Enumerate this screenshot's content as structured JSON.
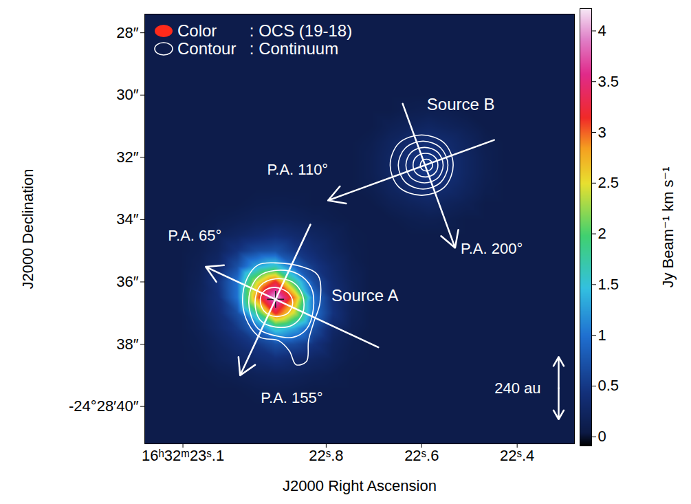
{
  "chart_data": {
    "type": "heatmap",
    "x_label": "J2000 Right Ascension",
    "y_label": "J2000 Declination",
    "xlim": [
      22.28,
      23.18
    ],
    "ylim": [
      27.4,
      41.2
    ],
    "xticks": [
      {
        "value": 23.1,
        "label": "16ʰ32ᵐ23ˢ.1"
      },
      {
        "value": 22.8,
        "label": "22ˢ.8"
      },
      {
        "value": 22.6,
        "label": "22ˢ.6"
      },
      {
        "value": 22.4,
        "label": "22ˢ.4"
      }
    ],
    "yticks": [
      {
        "value": 28,
        "label": "28″"
      },
      {
        "value": 30,
        "label": "30″"
      },
      {
        "value": 32,
        "label": "32″"
      },
      {
        "value": 34,
        "label": "34″"
      },
      {
        "value": 36,
        "label": "36″"
      },
      {
        "value": 38,
        "label": "38″"
      },
      {
        "value": 40,
        "label": "-24°28′40″"
      }
    ],
    "legend": "top-left",
    "legend_items": [
      {
        "key": "Color",
        "text": ": OCS (19-18)",
        "type": "raster",
        "color": "#ff2a1a"
      },
      {
        "key": "Contour",
        "text": ": Continuum",
        "type": "contour",
        "color": "#ffffff"
      }
    ],
    "colorbar": {
      "label": "Jy Beam⁻¹ km s⁻¹",
      "range": [
        -0.09,
        4.22
      ],
      "ticks": [
        0,
        0.5,
        1,
        1.5,
        2,
        2.5,
        3,
        3.5,
        4
      ]
    },
    "heatmap": {
      "x": [
        23.186,
        23.146,
        23.106,
        23.066,
        23.026,
        22.986,
        22.946,
        22.906,
        22.866,
        22.826,
        22.786,
        22.746,
        22.706,
        22.666,
        22.626,
        22.586,
        22.546,
        22.506,
        22.466,
        22.426,
        22.386,
        22.346,
        22.306,
        22.266
      ],
      "y": [
        27,
        27.5,
        28,
        28.5,
        29,
        29.5,
        30,
        30.5,
        31,
        31.5,
        32,
        32.5,
        33,
        33.5,
        34,
        34.5,
        35,
        35.5,
        36,
        36.5,
        37,
        37.5,
        38,
        38.5,
        39,
        39.5,
        40,
        40.5,
        41,
        41.5
      ],
      "values": [
        [
          0.08,
          0.08,
          0.08,
          0.08,
          0.08,
          0.08,
          0.08,
          0.08,
          0.08,
          0.08,
          0.08,
          0.08,
          0.08,
          0.08,
          0.08,
          0.08,
          0.08,
          0.08,
          0.08,
          0.08,
          0.08,
          0.08,
          0.08,
          0.08
        ],
        [
          0.08,
          0.08,
          0.08,
          0.08,
          0.08,
          0.08,
          0.08,
          0.08,
          0.08,
          0.08,
          0.08,
          0.08,
          0.08,
          0.08,
          0.08,
          0.08,
          0.08,
          0.08,
          0.08,
          0.08,
          0.08,
          0.08,
          0.08,
          0.08
        ],
        [
          0.08,
          0.08,
          0.08,
          0.08,
          0.08,
          0.08,
          0.08,
          0.08,
          0.08,
          0.08,
          0.08,
          0.08,
          0.08,
          0.08,
          0.08,
          0.08,
          0.08,
          0.08,
          0.08,
          0.08,
          0.08,
          0.08,
          0.08,
          0.08
        ],
        [
          0.08,
          0.08,
          0.08,
          0.08,
          0.08,
          0.08,
          0.08,
          0.08,
          0.08,
          0.08,
          0.08,
          0.08,
          0.08,
          0.08,
          0.08,
          0.08,
          0.08,
          0.08,
          0.08,
          0.08,
          0.08,
          0.08,
          0.08,
          0.08
        ],
        [
          0.08,
          0.08,
          0.08,
          0.08,
          0.08,
          0.08,
          0.08,
          0.08,
          0.08,
          0.08,
          0.08,
          0.08,
          0.08,
          0.08,
          0.08,
          0.08,
          0.08,
          0.08,
          0.08,
          0.08,
          0.08,
          0.08,
          0.08,
          0.08
        ],
        [
          0.08,
          0.08,
          0.08,
          0.08,
          0.08,
          0.08,
          0.08,
          0.08,
          0.08,
          0.08,
          0.08,
          0.08,
          0.08,
          0.08,
          0.08,
          0.08,
          0.08,
          0.08,
          0.08,
          0.08,
          0.08,
          0.08,
          0.08,
          0.08
        ],
        [
          0.08,
          0.08,
          0.08,
          0.08,
          0.08,
          0.08,
          0.08,
          0.08,
          0.08,
          0.08,
          0.08,
          0.08,
          0.08,
          0.08,
          0.08,
          0.08,
          0.08,
          0.08,
          0.08,
          0.08,
          0.08,
          0.08,
          0.08,
          0.08
        ],
        [
          0.08,
          0.08,
          0.08,
          0.08,
          0.08,
          0.08,
          0.08,
          0.08,
          0.08,
          0.08,
          0.08,
          0.08,
          0.08,
          0.08,
          0.12,
          0.14,
          0.12,
          0.08,
          0.08,
          0.08,
          0.08,
          0.08,
          0.08,
          0.08
        ],
        [
          0.08,
          0.08,
          0.08,
          0.08,
          0.08,
          0.08,
          0.08,
          0.08,
          0.08,
          0.08,
          0.08,
          0.08,
          0.08,
          0.15,
          0.2,
          0.25,
          0.2,
          0.15,
          0.08,
          0.08,
          0.08,
          0.08,
          0.08,
          0.08
        ],
        [
          0.08,
          0.08,
          0.08,
          0.08,
          0.08,
          0.08,
          0.08,
          0.08,
          0.08,
          0.08,
          0.08,
          0.08,
          0.12,
          0.22,
          0.32,
          0.38,
          0.32,
          0.22,
          0.12,
          0.08,
          0.08,
          0.08,
          0.08,
          0.08
        ],
        [
          0.08,
          0.08,
          0.08,
          0.08,
          0.08,
          0.08,
          0.08,
          0.08,
          0.08,
          0.08,
          0.08,
          0.08,
          0.14,
          0.25,
          0.4,
          0.5,
          0.4,
          0.25,
          0.14,
          0.08,
          0.08,
          0.08,
          0.08,
          0.08
        ],
        [
          0.08,
          0.08,
          0.08,
          0.08,
          0.08,
          0.08,
          0.08,
          0.08,
          0.08,
          0.08,
          0.08,
          0.08,
          0.14,
          0.25,
          0.4,
          0.5,
          0.4,
          0.25,
          0.14,
          0.08,
          0.08,
          0.08,
          0.08,
          0.08
        ],
        [
          0.08,
          0.08,
          0.08,
          0.08,
          0.08,
          0.08,
          0.08,
          0.08,
          0.08,
          0.08,
          0.08,
          0.08,
          0.12,
          0.22,
          0.32,
          0.38,
          0.32,
          0.22,
          0.12,
          0.08,
          0.08,
          0.08,
          0.08,
          0.08
        ],
        [
          0.08,
          0.08,
          0.08,
          0.08,
          0.08,
          0.08,
          0.11,
          0.12,
          0.11,
          0.08,
          0.08,
          0.08,
          0.08,
          0.15,
          0.2,
          0.25,
          0.2,
          0.15,
          0.08,
          0.08,
          0.08,
          0.08,
          0.08,
          0.08
        ],
        [
          0.08,
          0.08,
          0.08,
          0.08,
          0.11,
          0.14,
          0.18,
          0.2,
          0.18,
          0.14,
          0.11,
          0.08,
          0.08,
          0.08,
          0.12,
          0.14,
          0.12,
          0.08,
          0.08,
          0.08,
          0.08,
          0.08,
          0.08,
          0.08
        ],
        [
          0.08,
          0.08,
          0.08,
          0.1,
          0.18,
          0.25,
          0.33,
          0.4,
          0.33,
          0.25,
          0.18,
          0.1,
          0.08,
          0.08,
          0.08,
          0.08,
          0.08,
          0.08,
          0.08,
          0.08,
          0.08,
          0.08,
          0.08,
          0.08
        ],
        [
          0.08,
          0.08,
          0.08,
          0.12,
          0.22,
          0.45,
          0.65,
          0.7,
          0.5,
          0.35,
          0.22,
          0.12,
          0.08,
          0.08,
          0.08,
          0.08,
          0.08,
          0.08,
          0.08,
          0.08,
          0.08,
          0.08,
          0.08,
          0.08
        ],
        [
          0.08,
          0.08,
          0.08,
          0.15,
          0.3,
          0.7,
          1.3,
          1.6,
          0.9,
          0.5,
          0.3,
          0.15,
          0.08,
          0.08,
          0.08,
          0.08,
          0.08,
          0.08,
          0.08,
          0.08,
          0.08,
          0.08,
          0.08,
          0.08
        ],
        [
          0.08,
          0.08,
          0.08,
          0.18,
          0.45,
          1.0,
          2.4,
          3.2,
          1.8,
          0.7,
          0.35,
          0.18,
          0.08,
          0.08,
          0.08,
          0.08,
          0.08,
          0.08,
          0.08,
          0.08,
          0.08,
          0.08,
          0.08,
          0.08
        ],
        [
          0.08,
          0.08,
          0.08,
          0.2,
          0.4,
          1.0,
          2.9,
          4.1,
          2.9,
          1.0,
          0.4,
          0.2,
          0.08,
          0.08,
          0.08,
          0.08,
          0.08,
          0.08,
          0.08,
          0.08,
          0.08,
          0.08,
          0.08,
          0.08
        ],
        [
          0.08,
          0.08,
          0.08,
          0.18,
          0.35,
          0.7,
          1.8,
          3.2,
          2.4,
          1.0,
          0.45,
          0.18,
          0.08,
          0.08,
          0.08,
          0.08,
          0.08,
          0.08,
          0.08,
          0.08,
          0.08,
          0.08,
          0.08,
          0.08
        ],
        [
          0.08,
          0.08,
          0.08,
          0.15,
          0.3,
          0.5,
          0.9,
          1.6,
          1.3,
          0.7,
          0.3,
          0.15,
          0.08,
          0.08,
          0.08,
          0.08,
          0.08,
          0.08,
          0.08,
          0.08,
          0.08,
          0.08,
          0.08,
          0.08
        ],
        [
          0.08,
          0.08,
          0.08,
          0.12,
          0.22,
          0.35,
          0.5,
          0.7,
          0.65,
          0.45,
          0.22,
          0.12,
          0.08,
          0.08,
          0.08,
          0.08,
          0.08,
          0.08,
          0.08,
          0.08,
          0.08,
          0.08,
          0.08,
          0.08
        ],
        [
          0.08,
          0.08,
          0.08,
          0.1,
          0.18,
          0.25,
          0.33,
          0.4,
          0.33,
          0.25,
          0.18,
          0.1,
          0.08,
          0.08,
          0.08,
          0.08,
          0.08,
          0.08,
          0.08,
          0.08,
          0.08,
          0.08,
          0.08,
          0.08
        ],
        [
          0.08,
          0.08,
          0.08,
          0.08,
          0.11,
          0.14,
          0.18,
          0.2,
          0.18,
          0.14,
          0.11,
          0.08,
          0.08,
          0.08,
          0.08,
          0.08,
          0.08,
          0.08,
          0.08,
          0.08,
          0.08,
          0.08,
          0.08,
          0.08
        ],
        [
          0.08,
          0.08,
          0.08,
          0.08,
          0.08,
          0.08,
          0.11,
          0.12,
          0.11,
          0.08,
          0.08,
          0.08,
          0.08,
          0.08,
          0.08,
          0.08,
          0.08,
          0.08,
          0.08,
          0.08,
          0.08,
          0.08,
          0.08,
          0.08
        ],
        [
          0.08,
          0.08,
          0.08,
          0.08,
          0.08,
          0.08,
          0.08,
          0.08,
          0.08,
          0.08,
          0.08,
          0.08,
          0.08,
          0.08,
          0.08,
          0.08,
          0.08,
          0.08,
          0.08,
          0.08,
          0.08,
          0.08,
          0.08,
          0.08
        ],
        [
          0.08,
          0.08,
          0.08,
          0.08,
          0.08,
          0.08,
          0.08,
          0.08,
          0.08,
          0.08,
          0.08,
          0.08,
          0.08,
          0.08,
          0.08,
          0.08,
          0.08,
          0.08,
          0.08,
          0.08,
          0.08,
          0.08,
          0.08,
          0.08
        ],
        [
          0.08,
          0.08,
          0.08,
          0.08,
          0.08,
          0.08,
          0.08,
          0.08,
          0.08,
          0.08,
          0.08,
          0.08,
          0.08,
          0.08,
          0.08,
          0.08,
          0.08,
          0.08,
          0.08,
          0.08,
          0.08,
          0.08,
          0.08,
          0.08
        ],
        [
          0.08,
          0.08,
          0.08,
          0.08,
          0.08,
          0.08,
          0.08,
          0.08,
          0.08,
          0.08,
          0.08,
          0.08,
          0.08,
          0.08,
          0.08,
          0.08,
          0.08,
          0.08,
          0.08,
          0.08,
          0.08,
          0.08,
          0.08,
          0.08
        ]
      ]
    },
    "contours": [
      [
        [
          22.906,
          35.39
        ],
        [
          22.849,
          35.52
        ],
        [
          22.817,
          35.79
        ],
        [
          22.813,
          36.67
        ],
        [
          22.827,
          37.34
        ],
        [
          22.837,
          37.89
        ],
        [
          22.841,
          38.55
        ],
        [
          22.863,
          38.66
        ],
        [
          22.877,
          38.22
        ],
        [
          22.899,
          37.89
        ],
        [
          22.938,
          37.78
        ],
        [
          22.963,
          37.34
        ],
        [
          22.975,
          36.67
        ],
        [
          22.966,
          35.9
        ],
        [
          22.942,
          35.45
        ]
      ],
      [
        [
          22.906,
          35.63
        ],
        [
          22.86,
          35.74
        ],
        [
          22.831,
          36.19
        ],
        [
          22.827,
          36.89
        ],
        [
          22.841,
          37.51
        ],
        [
          22.87,
          37.78
        ],
        [
          22.906,
          37.73
        ],
        [
          22.942,
          37.51
        ],
        [
          22.959,
          37.0
        ],
        [
          22.96,
          36.34
        ],
        [
          22.942,
          35.83
        ]
      ],
      [
        [
          22.906,
          35.9
        ],
        [
          22.87,
          36.01
        ],
        [
          22.849,
          36.45
        ],
        [
          22.849,
          37.0
        ],
        [
          22.87,
          37.38
        ],
        [
          22.906,
          37.45
        ],
        [
          22.938,
          37.23
        ],
        [
          22.949,
          36.67
        ],
        [
          22.938,
          36.12
        ]
      ],
      [
        [
          22.906,
          36.18
        ],
        [
          22.88,
          36.34
        ],
        [
          22.87,
          36.67
        ],
        [
          22.88,
          37.0
        ],
        [
          22.906,
          37.11
        ],
        [
          22.93,
          36.94
        ],
        [
          22.938,
          36.56
        ],
        [
          22.928,
          36.27
        ]
      ],
      [
        [
          22.6,
          31.28
        ],
        [
          22.552,
          31.55
        ],
        [
          22.534,
          32.25
        ],
        [
          22.552,
          32.95
        ],
        [
          22.6,
          33.22
        ],
        [
          22.648,
          32.95
        ],
        [
          22.666,
          32.25
        ],
        [
          22.648,
          31.55
        ]
      ],
      [
        [
          22.597,
          31.48
        ],
        [
          22.56,
          31.7
        ],
        [
          22.545,
          32.25
        ],
        [
          22.56,
          32.8
        ],
        [
          22.597,
          33.02
        ],
        [
          22.634,
          32.8
        ],
        [
          22.649,
          32.25
        ],
        [
          22.634,
          31.7
        ]
      ],
      [
        [
          22.594,
          31.68
        ],
        [
          22.566,
          31.84
        ],
        [
          22.555,
          32.25
        ],
        [
          22.566,
          32.66
        ],
        [
          22.594,
          32.82
        ],
        [
          22.622,
          32.66
        ],
        [
          22.633,
          32.25
        ],
        [
          22.622,
          31.84
        ]
      ],
      [
        [
          22.592,
          31.87
        ],
        [
          22.573,
          31.98
        ],
        [
          22.566,
          32.25
        ],
        [
          22.573,
          32.52
        ],
        [
          22.592,
          32.63
        ],
        [
          22.611,
          32.52
        ],
        [
          22.618,
          32.25
        ],
        [
          22.611,
          31.98
        ]
      ],
      [
        [
          22.59,
          32.06
        ],
        [
          22.581,
          32.11
        ],
        [
          22.577,
          32.25
        ],
        [
          22.581,
          32.39
        ],
        [
          22.59,
          32.44
        ],
        [
          22.599,
          32.39
        ],
        [
          22.603,
          32.25
        ],
        [
          22.599,
          32.11
        ]
      ]
    ],
    "sources": [
      {
        "name": "Source A",
        "ra": 22.906,
        "dec": 36.56,
        "marker": "plus",
        "arrows": [
          {
            "pa": 65,
            "label": "P.A. 65°"
          },
          {
            "pa": 155,
            "label": "P.A. 155°"
          }
        ]
      },
      {
        "name": "Source B",
        "ra": 22.593,
        "dec": 32.25,
        "arrows": [
          {
            "pa": 110,
            "label": "P.A. 110°"
          },
          {
            "pa": 200,
            "label": "P.A. 200°"
          }
        ]
      }
    ],
    "scale_bar": {
      "label": "240 au",
      "size": 2
    }
  }
}
